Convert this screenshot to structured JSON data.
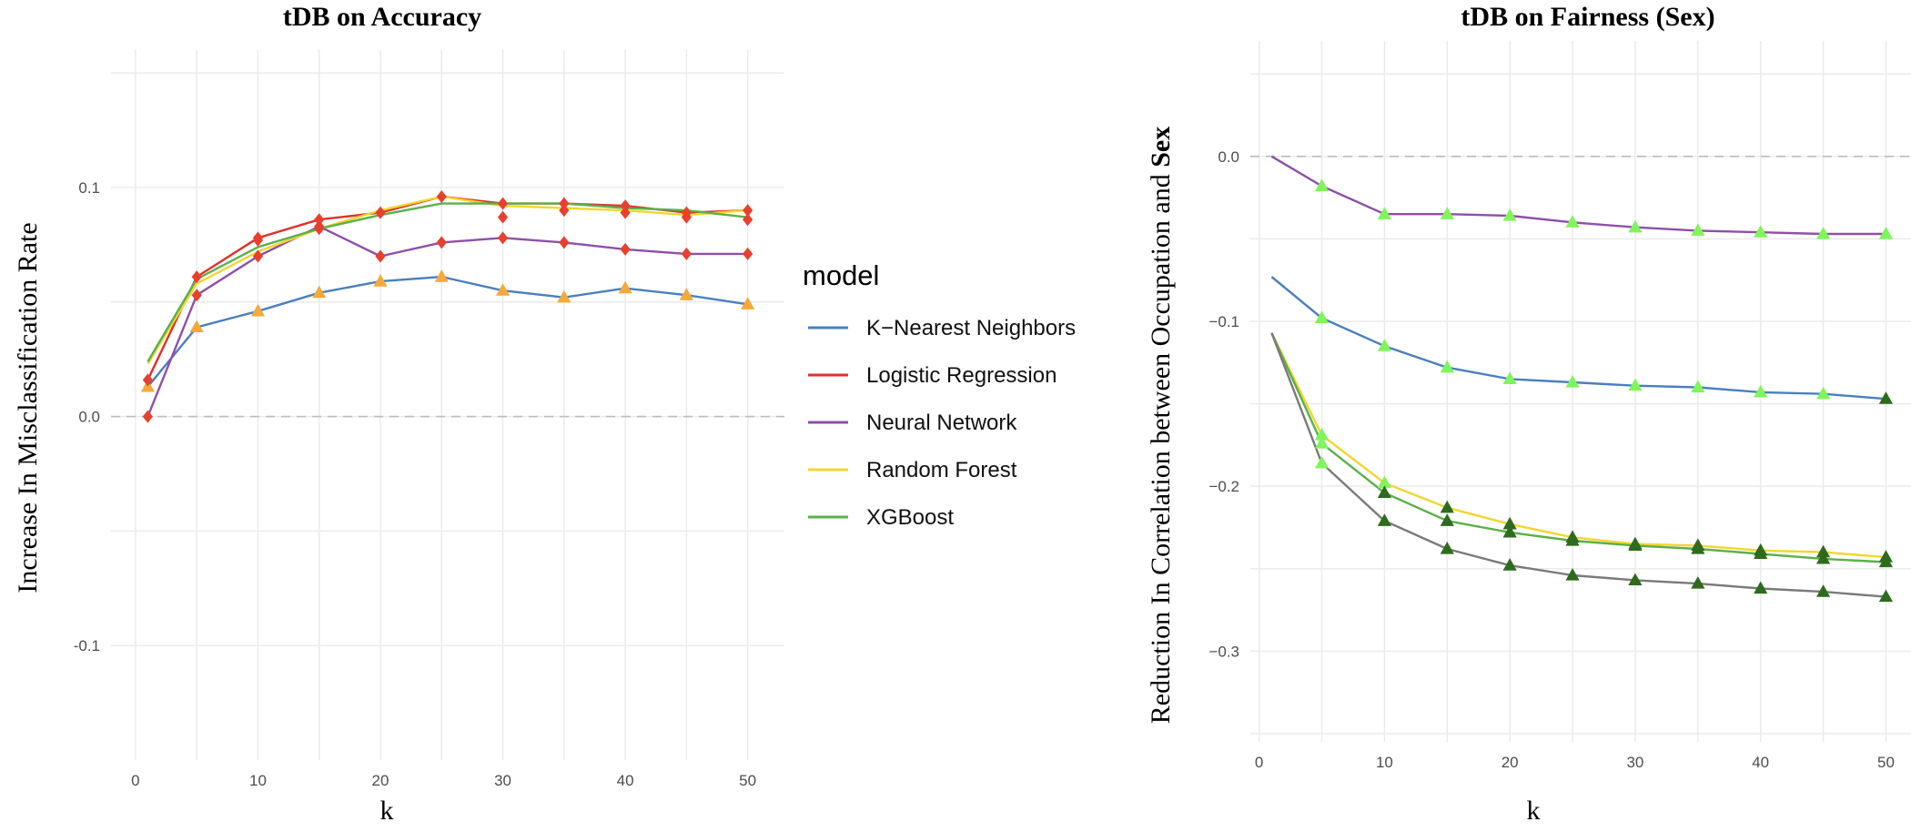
{
  "chart_data": [
    {
      "type": "line",
      "title": "tDB on Accuracy",
      "xlabel": "k",
      "ylabel": "Increase In Misclassification Rate",
      "xlim": [
        -2,
        53
      ],
      "ylim": [
        -0.15,
        0.16
      ],
      "x_ticks": [
        0,
        10,
        20,
        30,
        40,
        50
      ],
      "x_tick_labels": [
        "0",
        "10",
        "20",
        "30",
        "40",
        "50"
      ],
      "y_ticks": [
        -0.1,
        0.0,
        0.1
      ],
      "y_tick_labels": [
        "-0.1",
        "0.0",
        "0.1"
      ],
      "grid": true,
      "reference_line": 0.0,
      "x": [
        1,
        5,
        10,
        15,
        20,
        25,
        30,
        35,
        40,
        45,
        50
      ],
      "legend": {
        "title": "model",
        "position": "right"
      },
      "series": [
        {
          "name": "K−Nearest Neighbors",
          "color": "#4a7fbf",
          "marker": "triangle",
          "marker_color": "#f5a93a",
          "values": [
            0.013,
            0.039,
            0.046,
            0.054,
            0.059,
            0.061,
            0.055,
            0.052,
            0.056,
            0.053,
            0.049
          ]
        },
        {
          "name": "Logistic Regression",
          "color": "#e0312a",
          "marker": "diamond",
          "marker_color": "#e8402e",
          "values": [
            0.016,
            0.061,
            0.078,
            0.086,
            0.089,
            0.096,
            0.093,
            0.093,
            0.092,
            0.089,
            0.09
          ]
        },
        {
          "name": "Neural Network",
          "color": "#8e4fa8",
          "marker": "diamond",
          "marker_color": "#e8402e",
          "values": [
            0.0,
            0.053,
            0.07,
            0.083,
            0.07,
            0.076,
            0.078,
            0.076,
            0.073,
            0.071,
            0.071
          ]
        },
        {
          "name": "Random Forest",
          "color": "#f2d62e",
          "marker": "none",
          "marker_color": "",
          "values": [
            0.023,
            0.058,
            0.072,
            0.082,
            0.09,
            0.096,
            0.092,
            0.091,
            0.09,
            0.088,
            0.09
          ]
        },
        {
          "name": "XGBoost",
          "color": "#5bb04a",
          "marker": "none",
          "marker_color": "",
          "values": [
            0.024,
            0.06,
            0.074,
            0.082,
            0.088,
            0.093,
            0.093,
            0.093,
            0.091,
            0.09,
            0.087
          ]
        }
      ],
      "extra_marker_series": [
        {
          "name": "",
          "marker": "diamond",
          "marker_color": "#e8402e",
          "x": [
            10,
            15,
            30,
            35,
            40,
            45,
            50
          ],
          "values": [
            0.077,
            0.082,
            0.087,
            0.09,
            0.089,
            0.087,
            0.086
          ]
        }
      ]
    },
    {
      "type": "line",
      "title": "tDB on Fairness (Sex)",
      "xlabel": "k",
      "ylabel_parts": [
        "Reduction In Correlation between Occupation and ",
        "Sex"
      ],
      "xlim": [
        -0.7,
        52
      ],
      "ylim": [
        -0.355,
        0.07
      ],
      "x_ticks": [
        0,
        10,
        20,
        30,
        40,
        50
      ],
      "x_tick_labels": [
        "0",
        "10",
        "20",
        "30",
        "40",
        "50"
      ],
      "y_ticks": [
        -0.3,
        -0.2,
        -0.1,
        0.0
      ],
      "y_tick_labels": [
        "−0.3",
        "−0.2",
        "−0.1",
        "0.0"
      ],
      "grid": true,
      "reference_line": 0.0,
      "x": [
        1,
        5,
        10,
        15,
        20,
        25,
        30,
        35,
        40,
        45,
        50
      ],
      "series": [
        {
          "name": "",
          "color": "#8e4fa8",
          "marker": "triangle",
          "marker_colors": [
            "",
            "#7ff55b",
            "#7ff55b",
            "#7ff55b",
            "#7ff55b",
            "#7ff55b",
            "#7ff55b",
            "#7ff55b",
            "#7ff55b",
            "#7ff55b",
            "#7ff55b"
          ],
          "values": [
            0.0,
            -0.018,
            -0.035,
            -0.035,
            -0.036,
            -0.04,
            -0.043,
            -0.045,
            -0.046,
            -0.047,
            -0.047
          ]
        },
        {
          "name": "",
          "color": "#4a7fbf",
          "marker": "triangle",
          "marker_colors": [
            "",
            "#7ff55b",
            "#7ff55b",
            "#7ff55b",
            "#7ff55b",
            "#7ff55b",
            "#7ff55b",
            "#7ff55b",
            "#7ff55b",
            "#7ff55b",
            "#2e6b1e"
          ],
          "values": [
            -0.073,
            -0.098,
            -0.115,
            -0.128,
            -0.135,
            -0.137,
            -0.139,
            -0.14,
            -0.143,
            -0.144,
            -0.147
          ]
        },
        {
          "name": "",
          "color": "#f2d62e",
          "marker": "triangle",
          "marker_colors": [
            "",
            "#7ff55b",
            "#7ff55b",
            "#2e6b1e",
            "#2e6b1e",
            "#2e6b1e",
            "#2e6b1e",
            "#2e6b1e",
            "#2e6b1e",
            "#2e6b1e",
            "#2e6b1e"
          ],
          "values": [
            -0.107,
            -0.169,
            -0.198,
            -0.213,
            -0.223,
            -0.231,
            -0.235,
            -0.236,
            -0.239,
            -0.24,
            -0.243
          ]
        },
        {
          "name": "",
          "color": "#5bb04a",
          "marker": "triangle",
          "marker_colors": [
            "",
            "#7ff55b",
            "#2e6b1e",
            "#2e6b1e",
            "#2e6b1e",
            "#2e6b1e",
            "#2e6b1e",
            "#2e6b1e",
            "#2e6b1e",
            "#2e6b1e",
            "#2e6b1e"
          ],
          "values": [
            -0.107,
            -0.174,
            -0.204,
            -0.221,
            -0.228,
            -0.233,
            -0.236,
            -0.238,
            -0.241,
            -0.244,
            -0.246
          ]
        },
        {
          "name": "",
          "color": "#7a7a7a",
          "marker": "triangle",
          "marker_colors": [
            "",
            "#7ff55b",
            "#2e6b1e",
            "#2e6b1e",
            "#2e6b1e",
            "#2e6b1e",
            "#2e6b1e",
            "#2e6b1e",
            "#2e6b1e",
            "#2e6b1e",
            "#2e6b1e"
          ],
          "values": [
            -0.107,
            -0.186,
            -0.221,
            -0.238,
            -0.248,
            -0.254,
            -0.257,
            -0.259,
            -0.262,
            -0.264,
            -0.267
          ]
        }
      ]
    }
  ]
}
